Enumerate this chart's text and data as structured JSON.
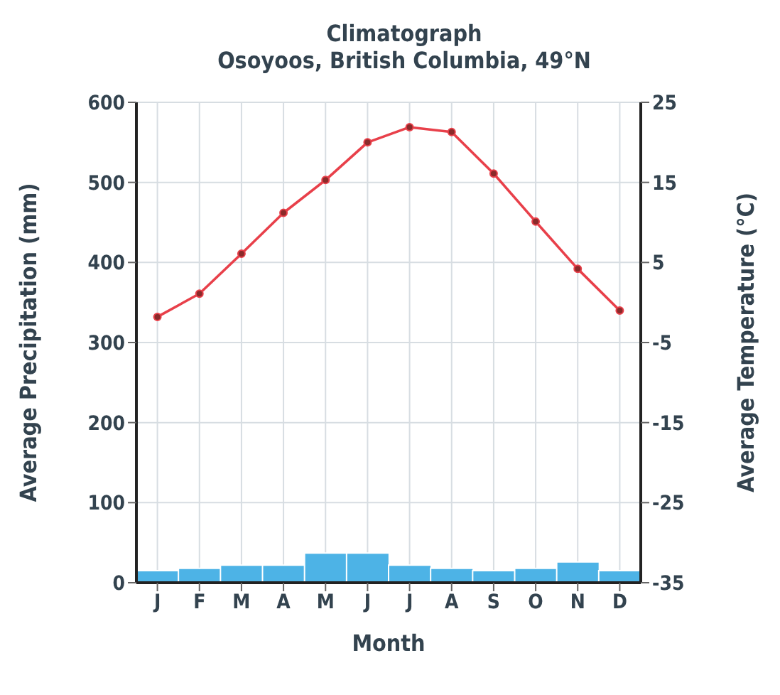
{
  "chart_data": {
    "type": "bar",
    "title": "Climatograph",
    "subtitle": "Osoyoos, British Columbia, 49°N",
    "xlabel": "Month",
    "ylabel": "Average Precipitation (mm)",
    "y2label": "Average Temperature (°C)",
    "categories": [
      "J",
      "F",
      "M",
      "A",
      "M",
      "J",
      "J",
      "A",
      "S",
      "O",
      "N",
      "D"
    ],
    "series": [
      {
        "color": "#4db3e6",
        "values": [
          15,
          18,
          22,
          22,
          37,
          37,
          22,
          18,
          15,
          18,
          26,
          15
        ]
      },
      {
        "type": "line",
        "axis": "y2",
        "color": "#e8404a",
        "values": [
          -1.8,
          1.1,
          6.1,
          11.2,
          15.3,
          20,
          21.9,
          21.3,
          16.1,
          10.1,
          4.2,
          -1
        ]
      }
    ],
    "ylim": [
      0,
      600
    ],
    "yticks": [
      0,
      100,
      200,
      300,
      400,
      500,
      600
    ],
    "y2lim": [
      -35,
      25
    ],
    "y2ticks": [
      -35,
      -25,
      -15,
      -5,
      5,
      15,
      25
    ],
    "grid": true,
    "marker": "circle",
    "line_style": "solid"
  }
}
